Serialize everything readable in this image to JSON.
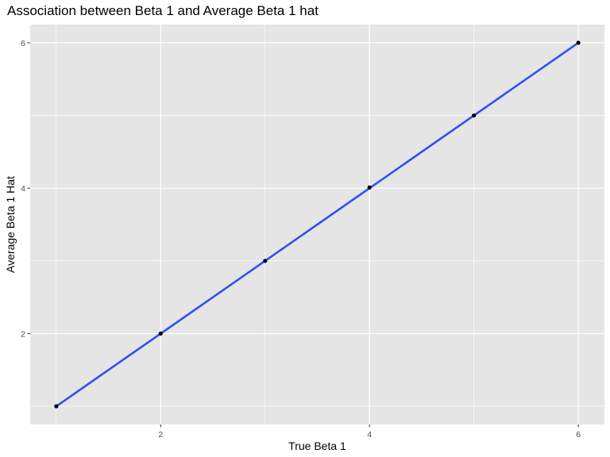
{
  "chart_data": {
    "type": "line",
    "title": "Association between Beta 1 and Average Beta 1 hat",
    "xlabel": "True Beta 1",
    "ylabel": "Average Beta 1 Hat",
    "xlim": [
      0.75,
      6.25
    ],
    "ylim": [
      0.75,
      6.25
    ],
    "xticks": [
      2,
      4,
      6
    ],
    "xtick_labels": [
      "2",
      "4",
      "6"
    ],
    "yticks": [
      2,
      4,
      6
    ],
    "ytick_labels": [
      "2",
      "4",
      "6"
    ],
    "grid": true,
    "points": [
      {
        "x": 1,
        "y": 1.0
      },
      {
        "x": 2,
        "y": 2.0
      },
      {
        "x": 3,
        "y": 3.0
      },
      {
        "x": 4,
        "y": 4.01
      },
      {
        "x": 5,
        "y": 5.0
      },
      {
        "x": 6,
        "y": 6.0
      }
    ],
    "fit_line": {
      "x": [
        1,
        6
      ],
      "y": [
        1.0,
        6.0
      ]
    },
    "colors": {
      "panel": "#e5e5e5",
      "grid": "#ffffff",
      "points": "#000000",
      "line": "#3050f0",
      "tick_text": "#4d4d4d"
    }
  }
}
